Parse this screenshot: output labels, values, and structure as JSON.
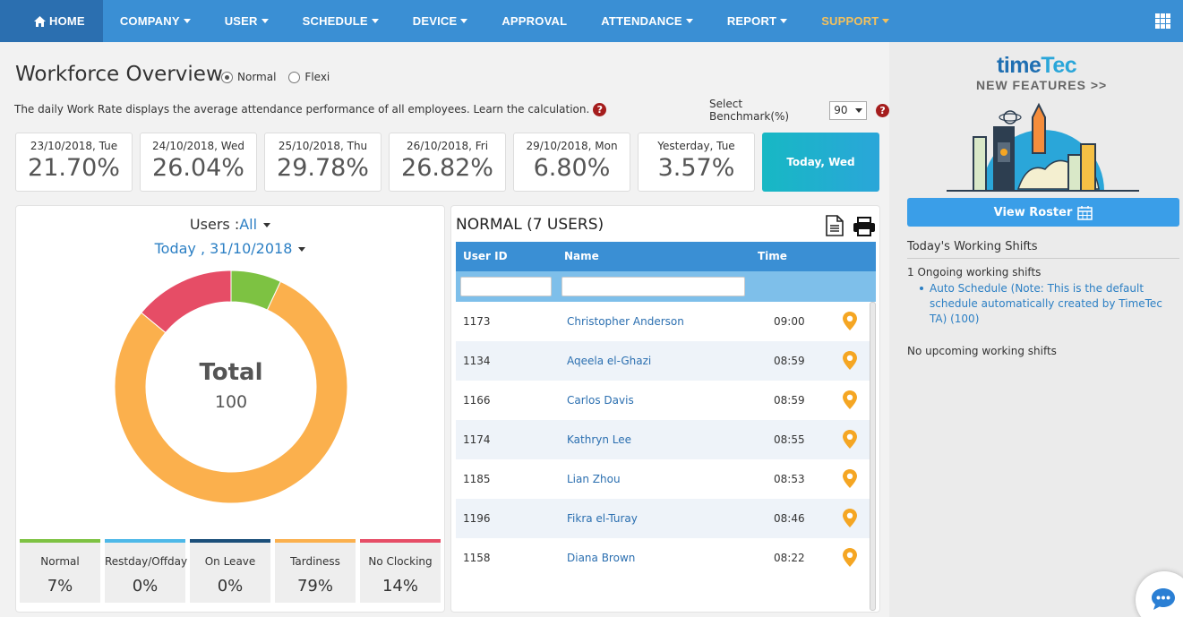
{
  "nav": {
    "items": [
      {
        "label": "HOME",
        "dropdown": false
      },
      {
        "label": "COMPANY",
        "dropdown": true
      },
      {
        "label": "USER",
        "dropdown": true
      },
      {
        "label": "SCHEDULE",
        "dropdown": true
      },
      {
        "label": "DEVICE",
        "dropdown": true
      },
      {
        "label": "APPROVAL",
        "dropdown": false
      },
      {
        "label": "ATTENDANCE",
        "dropdown": true
      },
      {
        "label": "REPORT",
        "dropdown": true
      },
      {
        "label": "SUPPORT",
        "dropdown": true
      }
    ]
  },
  "overview": {
    "title": "Workforce Overview",
    "mode_normal": "Normal",
    "mode_flexi": "Flexi",
    "mode_selected": "Normal",
    "description": "The daily Work Rate displays the average attendance performance of all employees. Learn the calculation.",
    "benchmark_label": "Select Benchmark(%)",
    "benchmark_value": "90",
    "help_glyph": "?"
  },
  "days": [
    {
      "date": "23/10/2018, Tue",
      "rate": "21.70%"
    },
    {
      "date": "24/10/2018, Wed",
      "rate": "26.04%"
    },
    {
      "date": "25/10/2018, Thu",
      "rate": "29.78%"
    },
    {
      "date": "26/10/2018, Fri",
      "rate": "26.82%"
    },
    {
      "date": "29/10/2018, Mon",
      "rate": "6.80%"
    },
    {
      "date": "Yesterday, Tue",
      "rate": "3.57%"
    }
  ],
  "today_card": "Today, Wed",
  "summary": {
    "users_label": "Users",
    "users_sep": ":",
    "users_value": "All",
    "date_label": "Today , 31/10/2018",
    "total_label": "Total",
    "total_value": "100",
    "categories": [
      {
        "name": "Normal",
        "value": "7%",
        "percent": 7,
        "color": "#7dc242"
      },
      {
        "name": "Restday/Offday",
        "value": "0%",
        "percent": 0,
        "color": "#4db8e8"
      },
      {
        "name": "On Leave",
        "value": "0%",
        "percent": 0,
        "color": "#1b4f7a"
      },
      {
        "name": "Tardiness",
        "value": "79%",
        "percent": 79,
        "color": "#fbb04d"
      },
      {
        "name": "No Clocking",
        "value": "14%",
        "percent": 14,
        "color": "#e64d66"
      }
    ]
  },
  "table": {
    "title": "NORMAL (7 USERS)",
    "headers": {
      "user_id": "User ID",
      "name": "Name",
      "time": "Time"
    },
    "rows": [
      {
        "id": "1173",
        "name": "Christopher Anderson",
        "time": "09:00"
      },
      {
        "id": "1134",
        "name": "Aqeela el-Ghazi",
        "time": "08:59"
      },
      {
        "id": "1166",
        "name": "Carlos Davis",
        "time": "08:59"
      },
      {
        "id": "1174",
        "name": "Kathryn Lee",
        "time": "08:55"
      },
      {
        "id": "1185",
        "name": "Lian Zhou",
        "time": "08:53"
      },
      {
        "id": "1196",
        "name": "Fikra el-Turay",
        "time": "08:46"
      },
      {
        "id": "1158",
        "name": "Diana Brown",
        "time": "08:22"
      }
    ]
  },
  "sidebar": {
    "logo_time": "time",
    "logo_tec": "Tec",
    "new_features": "NEW FEATURES >>",
    "view_roster": "View Roster",
    "shifts_heading": "Today's Working Shifts",
    "ongoing_count": "1 Ongoing working shifts",
    "ongoing_items": [
      "Auto Schedule (Note: This is the default schedule automatically created by TimeTec TA) (100)"
    ],
    "upcoming": "No upcoming working shifts"
  },
  "colors": {
    "nav_bg": "#3a8fd4",
    "nav_active": "#2b6fb0",
    "accent": "#2b7fc4",
    "support": "#f3c15d",
    "pin": "#f5a623"
  }
}
